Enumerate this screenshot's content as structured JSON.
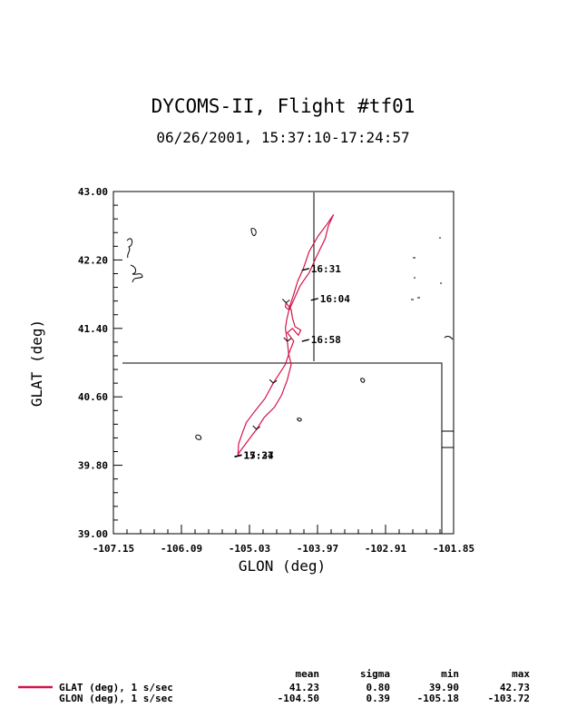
{
  "chart_data": {
    "type": "line",
    "title": "DYCOMS-II, Flight #tf01",
    "subtitle": "06/26/2001, 15:37:10-17:24:57",
    "xlabel": "GLON (deg)",
    "ylabel": "GLAT (deg)",
    "xlim": [
      -107.15,
      -101.85
    ],
    "ylim": [
      39.0,
      43.0
    ],
    "x_ticks": [
      "-107.15",
      "-106.09",
      "-105.03",
      "-103.97",
      "-102.91",
      "-101.85"
    ],
    "y_ticks": [
      "39.00",
      "39.80",
      "40.60",
      "41.40",
      "42.20",
      "43.00"
    ],
    "series": [
      {
        "color": "#d4134a",
        "x": [
          -105.21,
          -105.2,
          -105.13,
          -105.08,
          -104.96,
          -104.79,
          -104.66,
          -104.47,
          -104.41,
          -104.34,
          -104.44,
          -104.36,
          -104.27,
          -104.23,
          -104.32,
          -104.36,
          -104.38,
          -104.46,
          -104.47,
          -104.42,
          -104.34,
          -104.28,
          -104.19,
          -104.1,
          -103.96,
          -103.82,
          -103.72,
          -103.74,
          -103.8,
          -103.85,
          -103.98,
          -104.1,
          -104.24,
          -104.33,
          -104.42,
          -104.45,
          -104.47,
          -104.44,
          -104.42,
          -104.38,
          -104.44,
          -104.53,
          -104.64,
          -104.8,
          -104.92,
          -105.02,
          -105.12,
          -105.19,
          -105.21
        ],
        "y": [
          39.92,
          40.05,
          40.2,
          40.3,
          40.42,
          40.58,
          40.76,
          40.98,
          41.12,
          41.25,
          41.35,
          41.4,
          41.32,
          41.38,
          41.42,
          41.52,
          41.62,
          41.7,
          41.65,
          41.62,
          41.8,
          41.95,
          42.1,
          42.3,
          42.48,
          42.62,
          42.73,
          42.7,
          42.6,
          42.45,
          42.25,
          42.05,
          41.9,
          41.75,
          41.6,
          41.5,
          41.4,
          41.25,
          41.1,
          40.98,
          40.8,
          40.62,
          40.48,
          40.36,
          40.22,
          40.12,
          40.02,
          39.95,
          39.92
        ]
      }
    ],
    "annotations": [
      {
        "text": "16:31",
        "x": -104.1,
        "y": 42.1
      },
      {
        "text": "16:04",
        "x": -103.96,
        "y": 41.75
      },
      {
        "text": "16:58",
        "x": -104.1,
        "y": 41.27
      },
      {
        "text": "15:37",
        "x": -105.15,
        "y": 39.92
      },
      {
        "text": "17:24",
        "x": -105.15,
        "y": 39.92
      }
    ],
    "stats": {
      "headers": [
        "mean",
        "sigma",
        "min",
        "max"
      ],
      "rows": [
        {
          "label": "GLAT (deg), 1 s/sec",
          "values": [
            "41.23",
            "0.80",
            "39.90",
            "42.73"
          ],
          "line": true
        },
        {
          "label": "GLON (deg), 1 s/sec",
          "values": [
            "-104.50",
            "0.39",
            "-105.18",
            "-103.72"
          ],
          "line": false
        }
      ]
    }
  }
}
